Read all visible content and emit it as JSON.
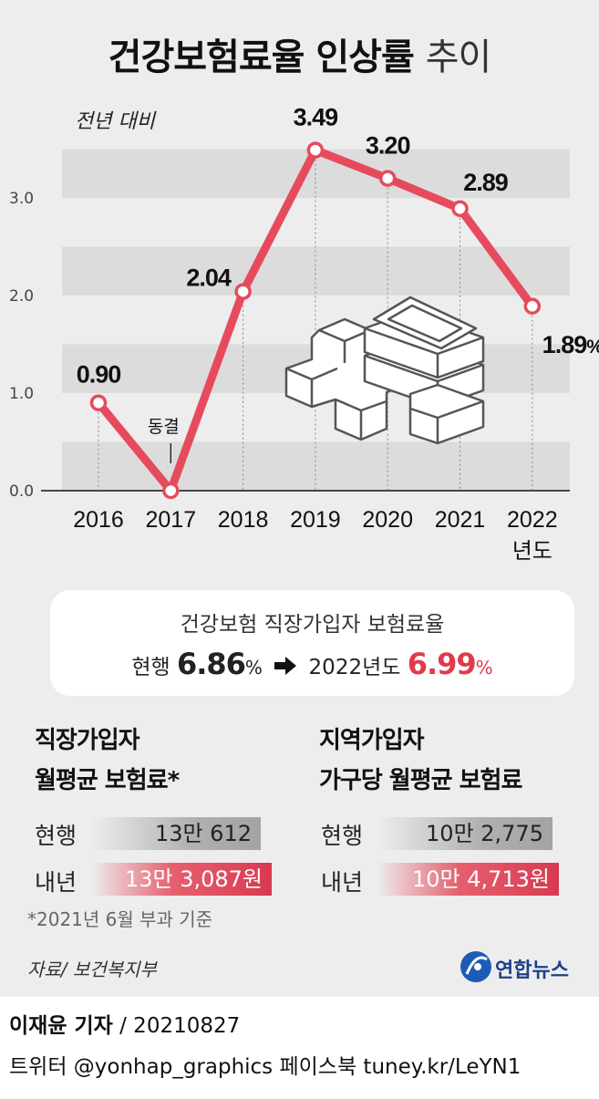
{
  "title_bold": "건강보험료율 인상률",
  "title_light": "추이",
  "chart_data": {
    "type": "line",
    "subtitle": "전년 대비",
    "categories": [
      "2016",
      "2017",
      "2018",
      "2019",
      "2020",
      "2021",
      "2022"
    ],
    "x_unit": "년도",
    "values": [
      0.9,
      0.0,
      2.04,
      3.49,
      3.2,
      2.89,
      1.89
    ],
    "value_labels": [
      "0.90",
      "",
      "2.04",
      "3.49",
      "3.20",
      "2.89",
      "1.89"
    ],
    "last_label_suffix": "%",
    "annotation": "동결",
    "y_ticks": [
      "0.0",
      "1.0",
      "2.0",
      "3.0"
    ],
    "ylim": [
      0,
      3.75
    ],
    "line_color": "#e64b5d"
  },
  "info": {
    "line1": "건강보험 직장가입자 보험료율",
    "current_label": "현행",
    "current_value": "6.86",
    "pct": "%",
    "next_label": "2022년도",
    "next_value": "6.99"
  },
  "employee": {
    "heading1": "직장가입자",
    "heading2": "월평균 보험료*",
    "row1_label": "현행",
    "row1_value": "13만 612",
    "row2_label": "내년",
    "row2_value": "13만 3,087원"
  },
  "regional": {
    "heading1": "지역가입자",
    "heading2": "가구당 월평균 보험료",
    "row1_label": "현행",
    "row1_value": "10만 2,775",
    "row2_label": "내년",
    "row2_value": "10만 4,713원"
  },
  "footnote": "*2021년 6월 부과 기준",
  "source": "자료/ 보건복지부",
  "logo_text": "연합뉴스",
  "byline_name": "이재윤 기자",
  "byline_date": " / 20210827",
  "social": "트위터 @yonhap_graphics  페이스북 tuney.kr/LeYN1",
  "colors": {
    "accent": "#e64b5d",
    "panel": "#ededed",
    "band": "#dcdcdc"
  }
}
